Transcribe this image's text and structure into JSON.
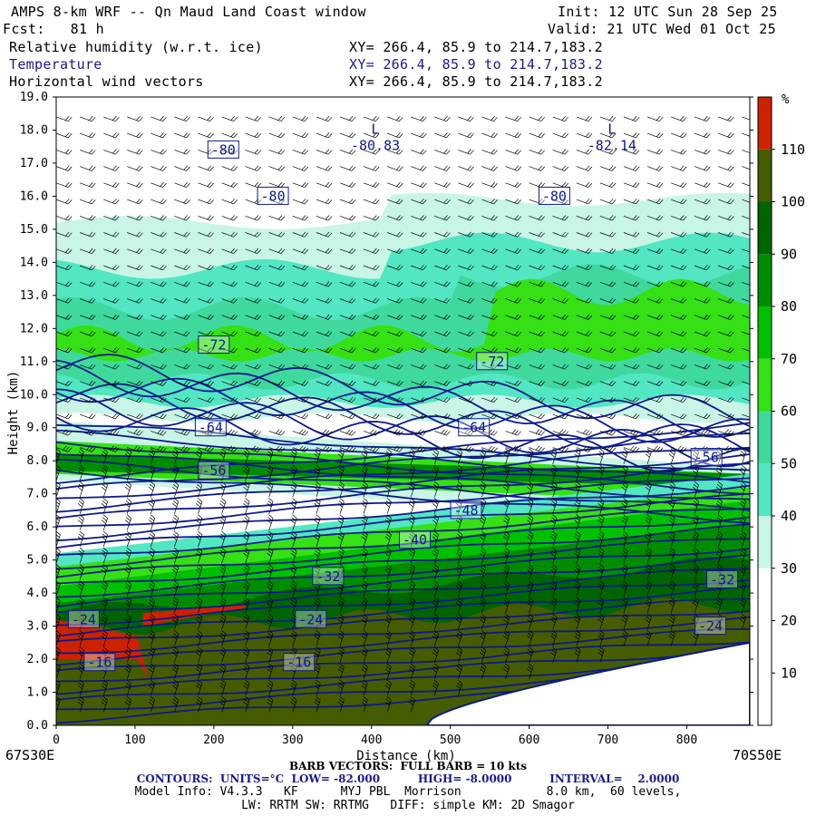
{
  "header": {
    "title": "AMPS 8-km WRF -- Qn Maud Land Coast window",
    "init": "Init: 12 UTC Sun 28 Sep 25",
    "fcst": "Fcst:   81 h",
    "valid": "Valid: 21 UTC Wed 01 Oct 25",
    "fields": [
      {
        "name": "Relative humidity (w.r.t. ice)",
        "xy": "XY= 266.4, 85.9 to 214.7,183.2"
      },
      {
        "name": "Temperature",
        "xy": "XY= 266.4, 85.9 to 214.7,183.2"
      },
      {
        "name": "Horizontal wind vectors",
        "xy": "XY= 266.4, 85.9 to 214.7,183.2"
      }
    ]
  },
  "footer": {
    "barb": "BARB VECTORS:  FULL BARB = 10 kts",
    "contours": "CONTOURS:  UNITS=°C  LOW= -82.000          HIGH= -8.0000          INTERVAL=    2.0000",
    "model_info": "Model Info: V4.3.3   KF      MYJ PBL  Morrison            8.0 km,  60 levels,",
    "physics": "LW: RRTM SW: RRTMG   DIFF: simple KM: 2D Smagor"
  },
  "colors": {
    "rh_bands": [
      "#ffffff",
      "#ffffff",
      "#ffffff",
      "#c8f5e6",
      "#52e6c3",
      "#3fd99e",
      "#35e014",
      "#00c000",
      "#008c00",
      "#006400",
      "#465c00",
      "#cc2200"
    ],
    "contour": "#0d1a8c",
    "terrain": "#0d1a8c"
  },
  "chart_data": {
    "type": "cross-section",
    "title": "Relative humidity (w.r.t. ice) / Temperature / Horizontal wind vectors",
    "xlabel": "Distance (km)",
    "ylabel": "Height (km)",
    "xlim": [
      0,
      880
    ],
    "ylim": [
      0,
      19
    ],
    "x_ticks": [
      "0",
      "100",
      "200",
      "300",
      "400",
      "500",
      "600",
      "700",
      "800"
    ],
    "y_ticks": [
      "0.0",
      "1.0",
      "2.0",
      "3.0",
      "4.0",
      "5.0",
      "6.0",
      "7.0",
      "8.0",
      "9.0",
      "10.0",
      "11.0",
      "12.0",
      "13.0",
      "14.0",
      "15.0",
      "16.0",
      "17.0",
      "18.0",
      "19.0"
    ],
    "x_endpoints": {
      "left": "67S30E",
      "right": "70S50E"
    },
    "colorbar": {
      "unit": "%",
      "levels": [
        "10",
        "20",
        "30",
        "40",
        "50",
        "60",
        "70",
        "80",
        "90",
        "100",
        "110"
      ],
      "colors": [
        "#ffffff",
        "#ffffff",
        "#ffffff",
        "#c8f5e6",
        "#52e6c3",
        "#3fd99e",
        "#35e014",
        "#00c000",
        "#008c00",
        "#006400",
        "#465c00",
        "#cc2200"
      ]
    },
    "contour_labels": [
      {
        "text": "-80",
        "x": 212,
        "z": 17.4
      },
      {
        "text": "-80",
        "x": 275,
        "z": 16.0
      },
      {
        "text": "-80",
        "x": 632,
        "z": 16.0
      },
      {
        "text": "-72",
        "x": 200,
        "z": 11.5
      },
      {
        "text": "-72",
        "x": 553,
        "z": 11.0
      },
      {
        "text": "-64",
        "x": 196,
        "z": 9.0
      },
      {
        "text": "-64",
        "x": 530,
        "z": 9.0
      },
      {
        "text": "-56",
        "x": 200,
        "z": 7.7
      },
      {
        "text": "-56",
        "x": 825,
        "z": 8.1
      },
      {
        "text": "-48",
        "x": 520,
        "z": 6.5
      },
      {
        "text": "-40",
        "x": 455,
        "z": 5.6
      },
      {
        "text": "-32",
        "x": 345,
        "z": 4.5
      },
      {
        "text": "-32",
        "x": 845,
        "z": 4.4
      },
      {
        "text": "-24",
        "x": 35,
        "z": 3.2
      },
      {
        "text": "-24",
        "x": 323,
        "z": 3.2
      },
      {
        "text": "-24",
        "x": 830,
        "z": 3.0
      },
      {
        "text": "-16",
        "x": 55,
        "z": 1.9
      },
      {
        "text": "-16",
        "x": 308,
        "z": 1.9
      }
    ],
    "extrema": [
      {
        "label": "L",
        "value": "-80.83",
        "x": 405,
        "z": 17.5
      },
      {
        "label": "L",
        "value": "-82.14",
        "x": 705,
        "z": 17.5
      }
    ],
    "temperature_contours": {
      "low": -82.0,
      "high": -8.0,
      "interval": 2.0,
      "units": "°C"
    },
    "terrain": {
      "surface_start_km": 470,
      "max_height_km": 2.5
    }
  }
}
